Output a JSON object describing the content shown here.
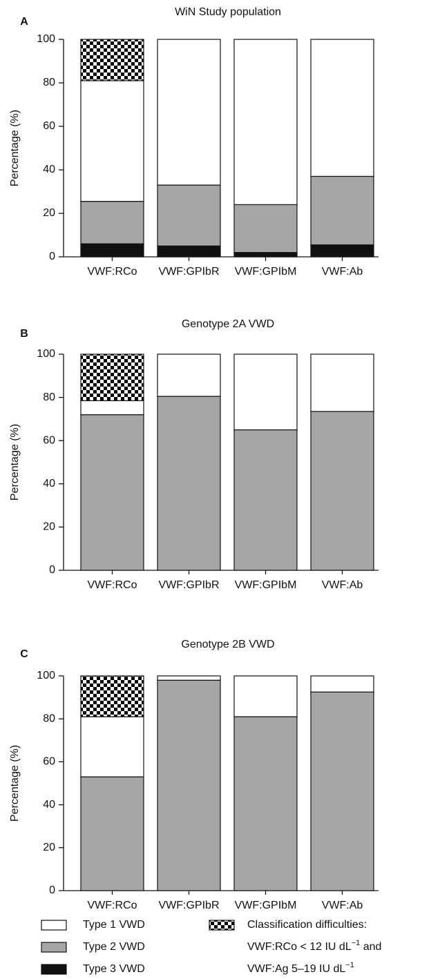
{
  "chart_data": [
    {
      "type": "bar",
      "stacked": true,
      "label": "A",
      "title": "WiN Study population",
      "y_label": "Percentage (%)",
      "categories": [
        "VWF:RCo",
        "VWF:GPIbR",
        "VWF:GPIbM",
        "VWF:Ab"
      ],
      "series": [
        {
          "name": "Type 3 VWD",
          "color": "#111111",
          "values": [
            6,
            5,
            2,
            5.5
          ]
        },
        {
          "name": "Type 2 VWD",
          "color": "#a6a6a6",
          "values": [
            19.5,
            28,
            22,
            31.5
          ]
        },
        {
          "name": "Type 1 VWD",
          "color": "#ffffff",
          "values": [
            55.5,
            67,
            76,
            63
          ]
        },
        {
          "name": "Classification difficulties:",
          "color": "#000000",
          "pattern": "checker",
          "values": [
            19,
            0,
            0,
            0
          ]
        }
      ],
      "ylim": [
        0,
        100
      ],
      "yticks": [
        0,
        20,
        40,
        60,
        80,
        100
      ]
    },
    {
      "type": "bar",
      "stacked": true,
      "label": "B",
      "title": "Genotype 2A VWD",
      "y_label": "Percentage (%)",
      "categories": [
        "VWF:RCo",
        "VWF:GPIbR",
        "VWF:GPIbM",
        "VWF:Ab"
      ],
      "series": [
        {
          "name": "Type 3 VWD",
          "color": "#111111",
          "values": [
            0,
            0,
            0,
            0
          ]
        },
        {
          "name": "Type 2 VWD",
          "color": "#a6a6a6",
          "values": [
            72,
            80.5,
            65,
            73.5
          ]
        },
        {
          "name": "Type 1 VWD",
          "color": "#ffffff",
          "values": [
            6.5,
            19.5,
            35,
            26.5
          ]
        },
        {
          "name": "Classification difficulties:",
          "color": "#000000",
          "pattern": "checker",
          "values": [
            21.5,
            0,
            0,
            0
          ]
        }
      ],
      "ylim": [
        0,
        100
      ],
      "yticks": [
        0,
        20,
        40,
        60,
        80,
        100
      ]
    },
    {
      "type": "bar",
      "stacked": true,
      "label": "C",
      "title": "Genotype 2B VWD",
      "y_label": "Percentage (%)",
      "categories": [
        "VWF:RCo",
        "VWF:GPIbR",
        "VWF:GPIbM",
        "VWF:Ab"
      ],
      "series": [
        {
          "name": "Type 3 VWD",
          "color": "#111111",
          "values": [
            0,
            0,
            0,
            0
          ]
        },
        {
          "name": "Type 2 VWD",
          "color": "#a6a6a6",
          "values": [
            53,
            98,
            81,
            92.5
          ]
        },
        {
          "name": "Type 1 VWD",
          "color": "#ffffff",
          "values": [
            28,
            2,
            19,
            7.5
          ]
        },
        {
          "name": "Classification difficulties:",
          "color": "#000000",
          "pattern": "checker",
          "values": [
            19,
            0,
            0,
            0
          ]
        }
      ],
      "ylim": [
        0,
        100
      ],
      "yticks": [
        0,
        20,
        40,
        60,
        80,
        100
      ]
    }
  ],
  "legend_note": [
    {
      "text": "VWF:RCo < 12 IU dL",
      "sup": "−1",
      "after": " and"
    },
    {
      "text": "VWF:Ag 5–19 IU dL",
      "sup": "−1"
    }
  ]
}
